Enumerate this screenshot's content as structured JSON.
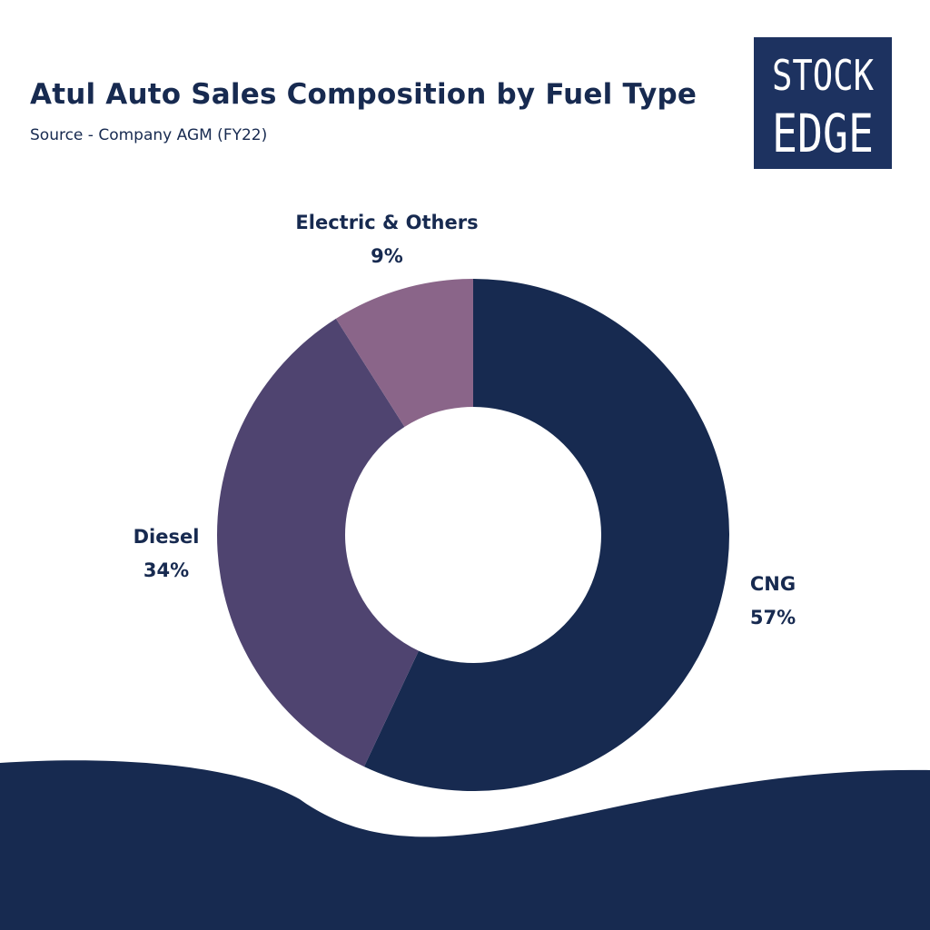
{
  "header": {
    "title": "Atul Auto Sales Composition by Fuel Type",
    "subtitle": "Source - Company AGM (FY22)"
  },
  "logo": {
    "line1": "STOCK",
    "line2": "EDGE",
    "background": "#1d3260",
    "text_color": "#ffffff"
  },
  "colors": {
    "primary": "#172a50",
    "background": "#ffffff"
  },
  "chart_data": {
    "type": "pie",
    "donut": true,
    "title": "Atul Auto Sales Composition by Fuel Type",
    "subtitle": "Source - Company AGM (FY22)",
    "categories": [
      "CNG",
      "Diesel",
      "Electric & Others"
    ],
    "values": [
      57,
      34,
      9
    ],
    "value_labels": [
      "57%",
      "34%",
      "9%"
    ],
    "colors": [
      "#172a50",
      "#4f4470",
      "#8a6589"
    ],
    "start": "12 o'clock",
    "direction": "clockwise",
    "legend": "none (labels placed beside slices)"
  }
}
